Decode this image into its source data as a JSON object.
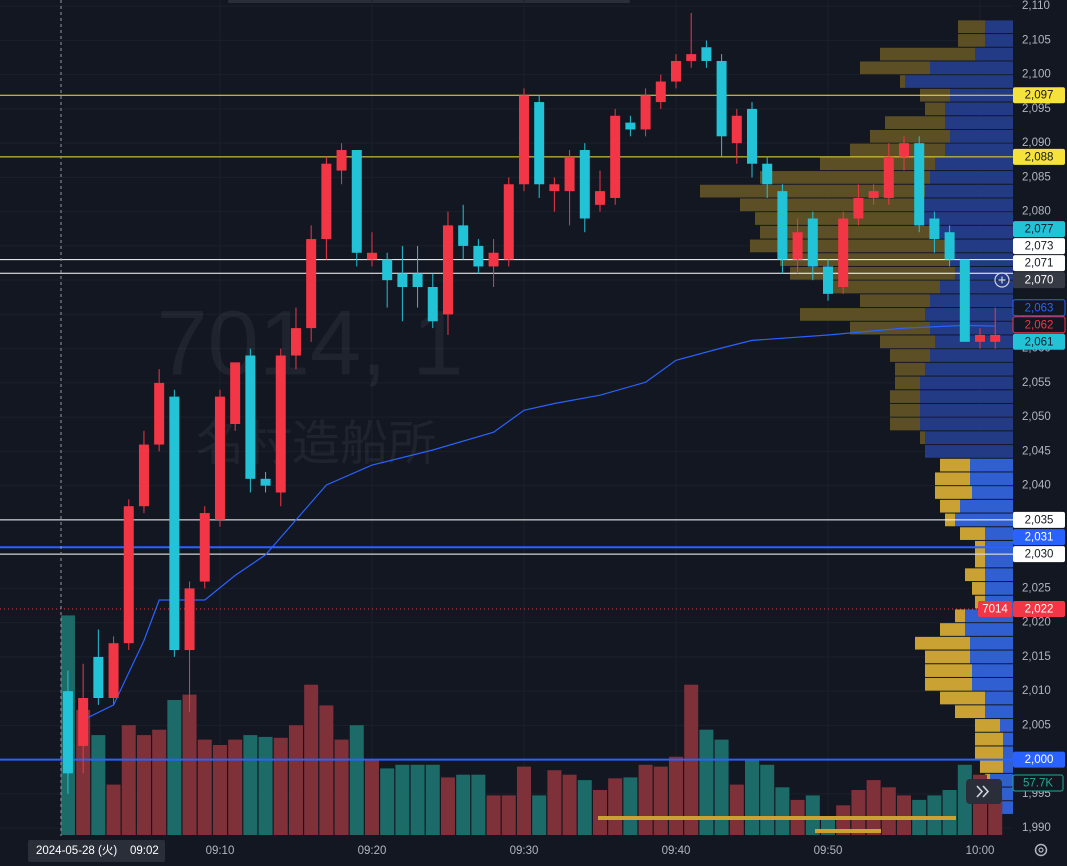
{
  "chart_data": {
    "type": "candlestick",
    "watermark": {
      "symbol": "7014, 1",
      "name": "名村造船所"
    },
    "xlim": [
      -4.47,
      62.17
    ],
    "xticks": [
      {
        "value": 10,
        "label": "09:10"
      },
      {
        "value": 20,
        "label": "09:20"
      },
      {
        "value": 30,
        "label": "09:30"
      },
      {
        "value": 40,
        "label": "09:40"
      },
      {
        "value": 50,
        "label": "09:50"
      },
      {
        "value": 60,
        "label": "10:00"
      }
    ],
    "ylim": [
      1989,
      2110.9
    ],
    "yticks": [
      {
        "value": 2110,
        "label": "2,110"
      },
      {
        "value": 2105,
        "label": "2,105"
      },
      {
        "value": 2100,
        "label": "2,100"
      },
      {
        "value": 2095,
        "label": "2,095"
      },
      {
        "value": 2090,
        "label": "2,090"
      },
      {
        "value": 2085,
        "label": "2,085"
      },
      {
        "value": 2080,
        "label": "2,080"
      },
      {
        "value": 2075,
        "label": "2,075"
      },
      {
        "value": 2070,
        "label": "2,070"
      },
      {
        "value": 2065,
        "label": "2,065"
      },
      {
        "value": 2060,
        "label": "2,060"
      },
      {
        "value": 2055,
        "label": "2,055"
      },
      {
        "value": 2050,
        "label": "2,050"
      },
      {
        "value": 2045,
        "label": "2,045"
      },
      {
        "value": 2040,
        "label": "2,040"
      },
      {
        "value": 2035,
        "label": "2,035"
      },
      {
        "value": 2030,
        "label": "2,030"
      },
      {
        "value": 2025,
        "label": "2,025"
      },
      {
        "value": 2020,
        "label": "2,020"
      },
      {
        "value": 2015,
        "label": "2,015"
      },
      {
        "value": 2010,
        "label": "2,010"
      },
      {
        "value": 2005,
        "label": "2,005"
      },
      {
        "value": 2000,
        "label": "2,000"
      },
      {
        "value": 1995,
        "label": "1,995"
      },
      {
        "value": 1990,
        "label": "1,990"
      }
    ],
    "grid": true,
    "up_color": "#f23645",
    "down_color": "#22c3d6",
    "x": [
      0,
      1,
      2,
      3,
      4,
      5,
      6,
      7,
      8,
      9,
      10,
      11,
      12,
      13,
      14,
      15,
      16,
      17,
      18,
      19,
      20,
      21,
      22,
      23,
      24,
      25,
      26,
      27,
      28,
      29,
      30,
      31,
      32,
      33,
      34,
      35,
      36,
      37,
      38,
      39,
      40,
      41,
      42,
      43,
      44,
      45,
      46,
      47,
      48,
      49,
      50,
      51,
      52,
      53,
      54,
      55,
      56,
      57,
      58,
      59,
      60,
      61
    ],
    "open": [
      2010,
      2002,
      2015,
      2009,
      2017,
      2037,
      2046,
      2053,
      2016,
      2026,
      2035,
      2049,
      2059,
      2041,
      2039,
      2059,
      2063,
      2076,
      2086,
      2089,
      2073,
      2073,
      2071,
      2071,
      2069,
      2065,
      2078,
      2075,
      2072,
      2073,
      2084,
      2096,
      2083,
      2083,
      2089,
      2081,
      2082,
      2093,
      2092,
      2096,
      2099,
      2102,
      2104,
      2102,
      2090,
      2095,
      2087,
      2083,
      2073,
      2079,
      2072,
      2069,
      2079,
      2082,
      2082,
      2088,
      2090,
      2079,
      2077,
      2073,
      2061,
      2061
    ],
    "high": [
      2013,
      2014,
      2019,
      2018,
      2038,
      2048,
      2057,
      2054,
      2026,
      2037,
      2054,
      2058,
      2060,
      2042,
      2060,
      2066,
      2078,
      2088,
      2090,
      2089,
      2077,
      2074,
      2075,
      2075,
      2071,
      2080,
      2081,
      2076,
      2076,
      2085,
      2098,
      2097,
      2085,
      2089,
      2090,
      2086,
      2095,
      2094,
      2098,
      2100,
      2103,
      2109,
      2105,
      2103,
      2095,
      2096,
      2088,
      2084,
      2079,
      2080,
      2073,
      2080,
      2084,
      2084,
      2090,
      2091,
      2091,
      2080,
      2078,
      2073,
      2063,
      2066
    ],
    "low": [
      1995,
      1998,
      2008,
      2008,
      2016,
      2036,
      2045,
      2015,
      2007,
      2025,
      2034,
      2048,
      2039,
      2039,
      2037,
      2057,
      2061,
      2073,
      2084,
      2072,
      2072,
      2066,
      2064,
      2066,
      2063,
      2062,
      2073,
      2071,
      2069,
      2072,
      2083,
      2082,
      2080,
      2078,
      2077,
      2080,
      2081,
      2091,
      2091,
      2095,
      2098,
      2101,
      2101,
      2088,
      2087,
      2085,
      2082,
      2071,
      2071,
      2070,
      2067,
      2068,
      2078,
      2081,
      2081,
      2086,
      2077,
      2074,
      2072,
      2061,
      2060,
      2060
    ],
    "close": [
      1998,
      2009,
      2009,
      2017,
      2037,
      2046,
      2055,
      2016,
      2025,
      2036,
      2053,
      2058,
      2041,
      2040,
      2059,
      2063,
      2076,
      2087,
      2089,
      2074,
      2074,
      2070,
      2069,
      2069,
      2064,
      2078,
      2075,
      2072,
      2074,
      2084,
      2097,
      2084,
      2084,
      2088,
      2079,
      2083,
      2094,
      2092,
      2097,
      2099,
      2102,
      2103,
      2102,
      2091,
      2094,
      2087,
      2084,
      2073,
      2077,
      2072,
      2068,
      2079,
      2082,
      2083,
      2088,
      2090,
      2078,
      2076,
      2073,
      2061,
      2062,
      2062
    ],
    "volume": {
      "values": [
        244,
        139,
        111,
        56,
        122,
        111,
        117,
        150,
        156,
        106,
        100,
        106,
        111,
        109,
        108,
        122,
        167,
        144,
        106,
        122,
        83,
        74,
        78,
        78,
        78,
        64,
        67,
        67,
        44,
        44,
        76,
        44,
        72,
        67,
        61,
        50,
        63,
        64,
        78,
        76,
        87,
        167,
        117,
        106,
        56,
        83,
        78,
        53,
        39,
        44,
        20,
        33,
        50,
        61,
        53,
        44,
        39,
        44,
        50,
        78,
        67,
        44
      ],
      "up_color": "#7e3139",
      "down_color": "#1d6b68",
      "last_label": "57.7K"
    },
    "vwap": {
      "color": "#2962ff",
      "x": [
        1,
        3,
        5,
        6,
        9,
        11,
        13,
        15,
        17,
        20,
        24,
        28,
        30,
        32,
        35,
        38,
        40,
        43,
        45,
        50,
        55,
        59,
        61
      ],
      "values": [
        2005.8,
        2008.0,
        2017.4,
        2023.3,
        2023.3,
        2026.9,
        2029.9,
        2035.0,
        2040.1,
        2043.0,
        2045.2,
        2047.8,
        2051.0,
        2052.0,
        2053.2,
        2055.1,
        2058.3,
        2060.1,
        2061.2,
        2062.0,
        2063.0,
        2063.4,
        2063.3
      ]
    },
    "profile": {
      "value_area_high": 2044,
      "colors": {
        "buy": "#233a84",
        "sell": "#5c4f26",
        "buy_va": "#2f5fd0",
        "sell_va": "#c9a233"
      },
      "prices": [
        2107,
        2105,
        2103,
        2101,
        2099,
        2097,
        2095,
        2093,
        2091,
        2089,
        2087,
        2085,
        2083,
        2081,
        2079,
        2077,
        2075,
        2073,
        2071,
        2069,
        2067,
        2065,
        2063,
        2061,
        2059,
        2057,
        2055,
        2053,
        2051,
        2049,
        2047,
        2045,
        2043,
        2041,
        2039,
        2037,
        2035,
        2033,
        2031,
        2029,
        2027,
        2025,
        2023,
        2021,
        2019,
        2017,
        2015,
        2013,
        2011,
        2009,
        2007,
        2005,
        2003,
        2001,
        1999,
        1997,
        1995,
        1993
      ],
      "buy": [
        28,
        28,
        38,
        83,
        108,
        63,
        68,
        68,
        63,
        68,
        78,
        83,
        88,
        93,
        93,
        78,
        68,
        63,
        58,
        73,
        83,
        88,
        83,
        78,
        83,
        88,
        93,
        93,
        93,
        93,
        88,
        88,
        43,
        43,
        41,
        53,
        58,
        28,
        28,
        28,
        28,
        28,
        28,
        48,
        48,
        43,
        43,
        41,
        41,
        28,
        28,
        13,
        10,
        10,
        10,
        23,
        23,
        13
      ],
      "sell": [
        27,
        27,
        95,
        70,
        5,
        30,
        20,
        60,
        80,
        95,
        115,
        170,
        225,
        180,
        165,
        175,
        195,
        170,
        165,
        110,
        70,
        125,
        80,
        55,
        40,
        30,
        25,
        30,
        30,
        30,
        5,
        0,
        30,
        35,
        37,
        20,
        10,
        25,
        10,
        10,
        20,
        13,
        10,
        10,
        25,
        55,
        45,
        47,
        47,
        45,
        30,
        25,
        28,
        28,
        23,
        5,
        15,
        10
      ]
    },
    "hlines": [
      {
        "value": 2097,
        "color": "#f5e33b"
      },
      {
        "value": 2088,
        "color": "#f5e33b"
      },
      {
        "value": 2073,
        "color": "#ffffff"
      },
      {
        "value": 2071,
        "color": "#ffffff"
      },
      {
        "value": 2035,
        "color": "#ffffff"
      },
      {
        "value": 2031,
        "color": "#2962ff",
        "width": 2
      },
      {
        "value": 2030,
        "color": "#ffffff"
      },
      {
        "value": 2022,
        "color": "#f23645",
        "dash": "1 3"
      },
      {
        "value": 2000,
        "color": "#2962ff",
        "width": 2
      }
    ],
    "price_labels": [
      {
        "value": 2000,
        "label": "2,000",
        "bg": "#2962ff",
        "fg": "#ffffff"
      },
      {
        "value": 2022,
        "label": "2,022",
        "bg": "#f23645",
        "fg": "#ffffff",
        "tag": "7014"
      },
      {
        "value": 2030,
        "label": "2,030",
        "bg": "#ffffff",
        "fg": "#131722"
      },
      {
        "value": 2031,
        "label": "2,031",
        "bg": "#2962ff",
        "fg": "#ffffff"
      },
      {
        "value": 2035,
        "label": "2,035",
        "bg": "#ffffff",
        "fg": "#131722"
      },
      {
        "value": 2061,
        "label": "2,061",
        "bg": "#22c3d6",
        "fg": "#131722"
      },
      {
        "value": 2062,
        "label": "2,062",
        "bg": "#131722",
        "fg": "#f23645",
        "border": "#f23645"
      },
      {
        "value": 2063,
        "label": "2,063",
        "bg": "#131722",
        "fg": "#2962ff",
        "border": "#2962ff"
      },
      {
        "value": 2070,
        "label": "2,070",
        "bg": "#363a45",
        "fg": "#ffffff"
      },
      {
        "value": 2071,
        "label": "2,071",
        "bg": "#ffffff",
        "fg": "#131722"
      },
      {
        "value": 2073,
        "label": "2,073",
        "bg": "#ffffff",
        "fg": "#131722"
      },
      {
        "value": 2077,
        "label": "2,077",
        "bg": "#22c3d6",
        "fg": "#131722"
      },
      {
        "value": 2088,
        "label": "2,088",
        "bg": "#f5e33b",
        "fg": "#131722"
      },
      {
        "value": 2097,
        "label": "2,097",
        "bg": "#f5e33b",
        "fg": "#131722"
      }
    ],
    "crosshair": {
      "date": "2024-05-28 (火)",
      "time": "09:02"
    }
  }
}
